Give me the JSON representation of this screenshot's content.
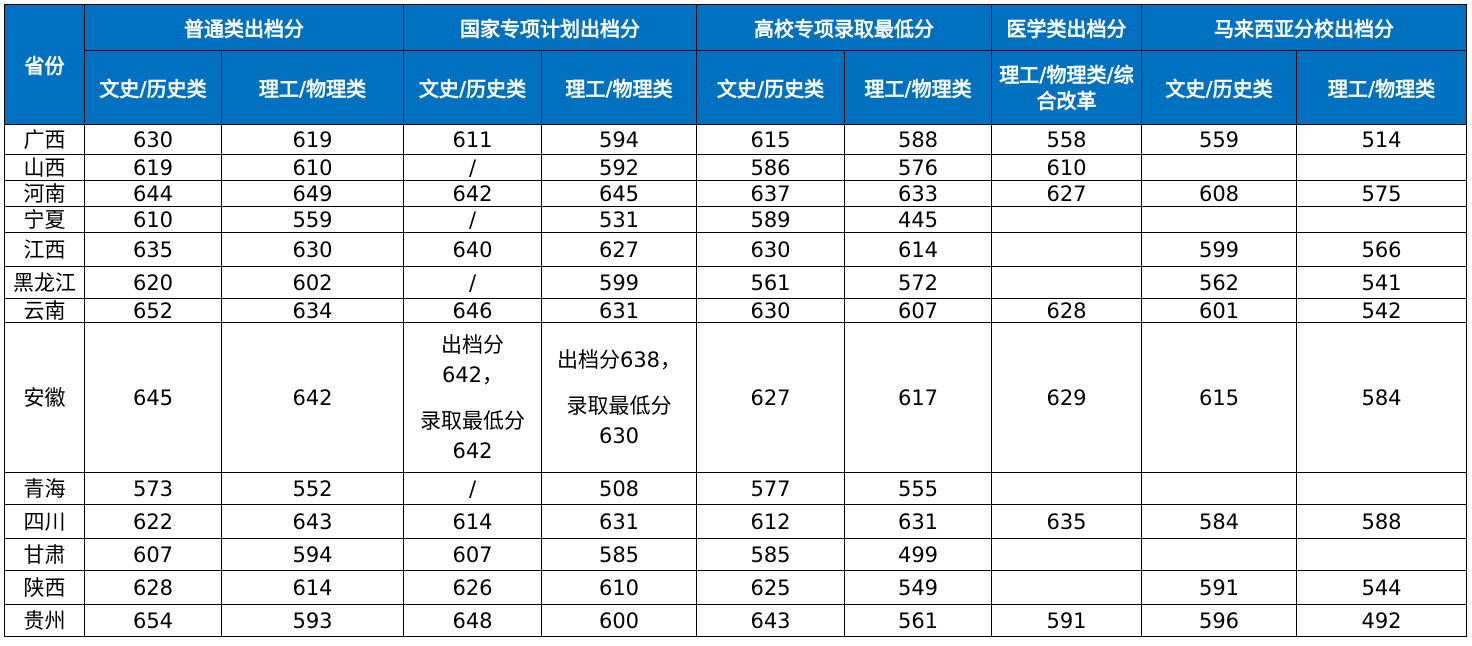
{
  "header": {
    "province": "省份",
    "groups": [
      "普通类出档分",
      "国家专项计划出档分",
      "高校专项录取最低分",
      "医学类出档分",
      "马来西亚分校出档分"
    ],
    "sub": [
      "文史/历史类",
      "理工/物理类",
      "文史/历史类",
      "理工/物理类",
      "文史/历史类",
      "理工/物理类",
      "理工/物理类/综合改革",
      "文史/历史类",
      "理工/物理类"
    ]
  },
  "rows": [
    {
      "p": "广西",
      "c": [
        "630",
        "619",
        "611",
        "594",
        "615",
        "588",
        "558",
        "559",
        "514"
      ]
    },
    {
      "p": "山西",
      "c": [
        "619",
        "610",
        "/",
        "592",
        "586",
        "576",
        "610",
        "",
        ""
      ]
    },
    {
      "p": "河南",
      "c": [
        "644",
        "649",
        "642",
        "645",
        "637",
        "633",
        "627",
        "608",
        "575"
      ]
    },
    {
      "p": "宁夏",
      "c": [
        "610",
        "559",
        "/",
        "531",
        "589",
        "445",
        "",
        "",
        ""
      ]
    },
    {
      "p": "江西",
      "c": [
        "635",
        "630",
        "640",
        "627",
        "630",
        "614",
        "",
        "599",
        "566"
      ]
    },
    {
      "p": "黑龙江",
      "c": [
        "620",
        "602",
        "/",
        "599",
        "561",
        "572",
        "",
        "562",
        "541"
      ]
    },
    {
      "p": "云南",
      "c": [
        "652",
        "634",
        "646",
        "631",
        "630",
        "607",
        "628",
        "601",
        "542"
      ]
    },
    {
      "p": "安徽",
      "c": [
        "645",
        "642",
        "",
        "",
        "627",
        "617",
        "629",
        "615",
        "584"
      ]
    },
    {
      "p": "青海",
      "c": [
        "573",
        "552",
        "/",
        "508",
        "577",
        "555",
        "",
        "",
        ""
      ]
    },
    {
      "p": "四川",
      "c": [
        "622",
        "643",
        "614",
        "631",
        "612",
        "631",
        "635",
        "584",
        "588"
      ]
    },
    {
      "p": "甘肃",
      "c": [
        "607",
        "594",
        "607",
        "585",
        "585",
        "499",
        "",
        "",
        ""
      ]
    },
    {
      "p": "陕西",
      "c": [
        "628",
        "614",
        "626",
        "610",
        "625",
        "549",
        "",
        "591",
        "544"
      ]
    },
    {
      "p": "贵州",
      "c": [
        "654",
        "593",
        "648",
        "600",
        "643",
        "561",
        "591",
        "596",
        "492"
      ]
    }
  ],
  "anhui_special": {
    "wenshi_line1": "出档分",
    "wenshi_line2": "642，",
    "wenshi_line3": "录取最低分",
    "wenshi_line4": "642",
    "ligong_line1": "出档分638，",
    "ligong_line2": "录取最低分",
    "ligong_line3": "630"
  }
}
